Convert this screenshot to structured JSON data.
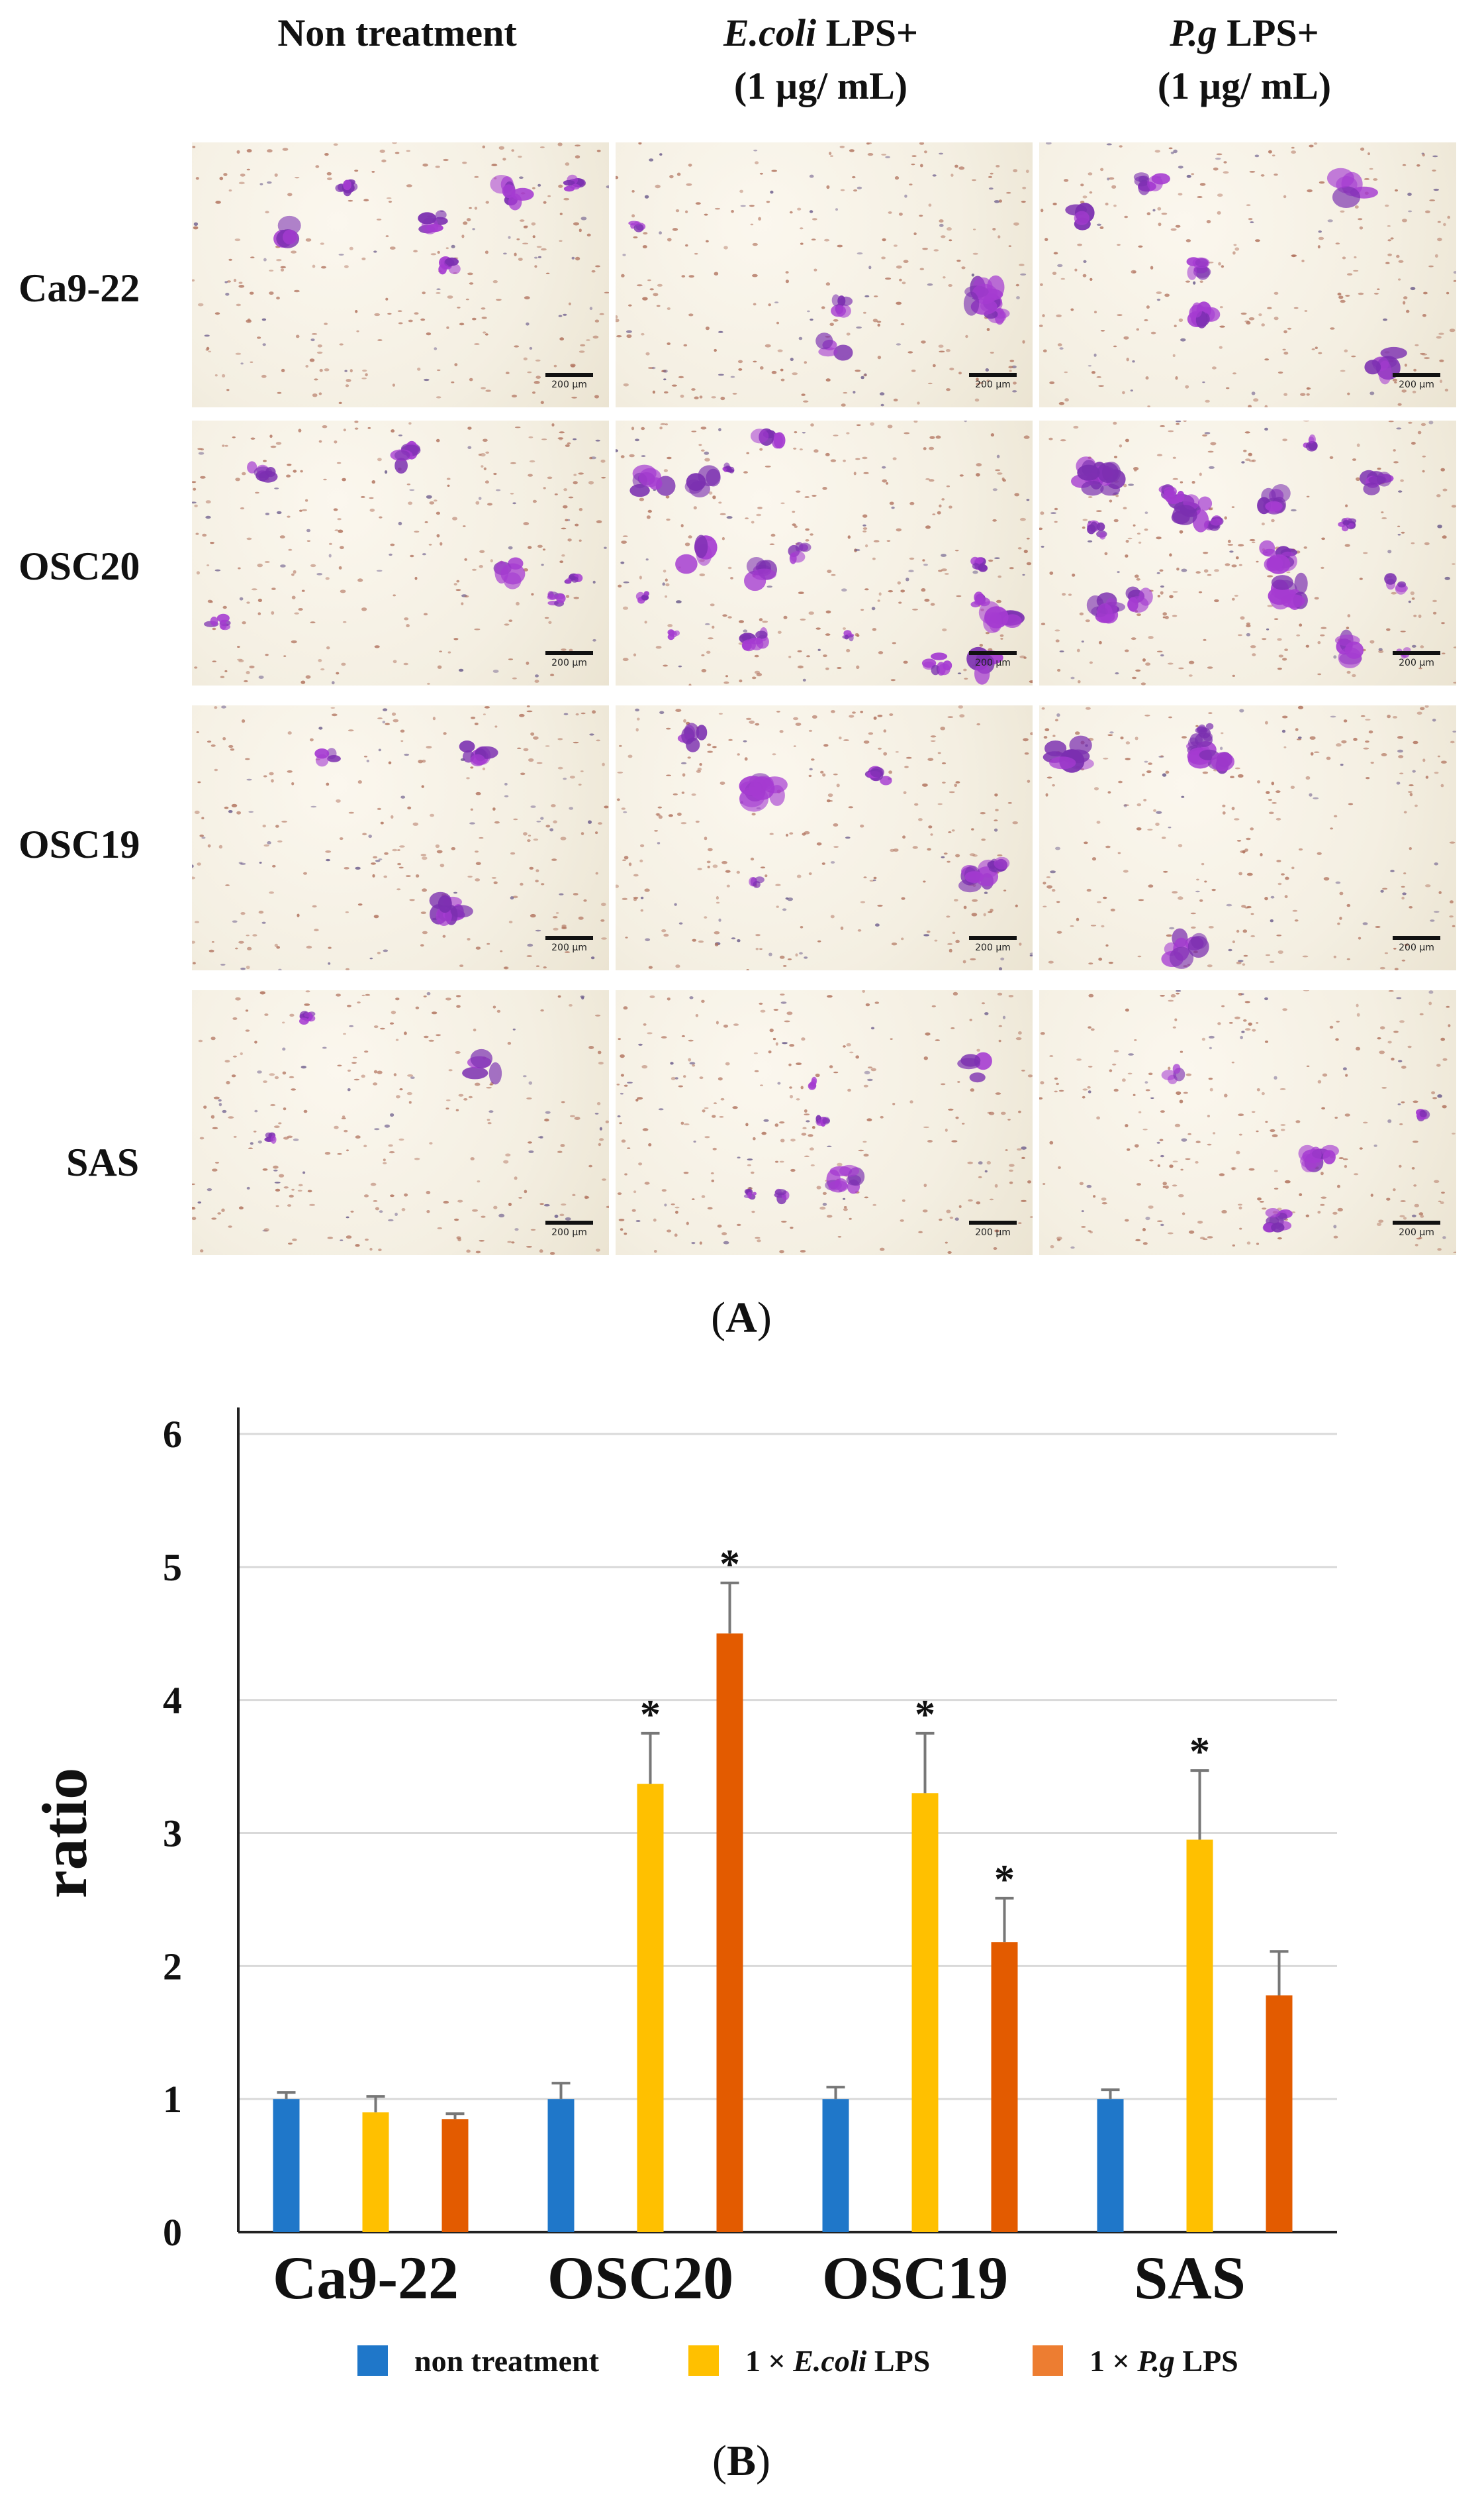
{
  "panel_a": {
    "column_headers": [
      {
        "line1": "Non treatment",
        "line2": ""
      },
      {
        "line1_italic": "E.coli",
        "line1_rest": " LPS+",
        "line2": "(1 µg/ mL)"
      },
      {
        "line1_italic": "P.g",
        "line1_rest": " LPS+",
        "line2": "(1 µg/ mL)"
      }
    ],
    "row_labels": [
      "Ca9-22",
      "OSC20",
      "OSC19",
      "SAS"
    ],
    "scale_bar_text": "200 µm",
    "label_prefix": "(",
    "label_letter": "A",
    "label_suffix": ")"
  },
  "panel_b": {
    "label_prefix": "(",
    "label_letter": "B",
    "label_suffix": ")"
  },
  "chart_data": {
    "type": "bar",
    "categories": [
      "Ca9-22",
      "OSC20",
      "OSC19",
      "SAS"
    ],
    "series": [
      {
        "name": "non treatment",
        "color": "#1f77c9",
        "values": [
          1.0,
          1.0,
          1.0,
          1.0
        ],
        "errors": [
          0.05,
          0.12,
          0.09,
          0.07
        ],
        "significant": [
          false,
          false,
          false,
          false
        ]
      },
      {
        "name": "1 × E.coli LPS",
        "color": "#ffc000",
        "values": [
          0.9,
          3.37,
          3.3,
          2.95
        ],
        "errors": [
          0.12,
          0.38,
          0.45,
          0.52
        ],
        "significant": [
          false,
          true,
          true,
          true
        ]
      },
      {
        "name": "1 × P.g LPS",
        "color": "#e35b00",
        "values": [
          0.85,
          4.5,
          2.18,
          1.78
        ],
        "errors": [
          0.04,
          0.38,
          0.33,
          0.33
        ],
        "significant": [
          false,
          true,
          true,
          false
        ]
      }
    ],
    "ylabel": "ratio",
    "ylim": [
      0,
      6
    ],
    "yticks": [
      0,
      1,
      2,
      3,
      4,
      5,
      6
    ],
    "grid": true,
    "significance_marker": "*",
    "legend": [
      {
        "prefix": "non treatment",
        "italic": "",
        "suffix": "",
        "color": "#1f77c9"
      },
      {
        "prefix": "1 × ",
        "italic": "E.coli",
        "suffix": " LPS",
        "color": "#ffc000"
      },
      {
        "prefix": "1 × ",
        "italic": "P.g",
        "suffix": " LPS",
        "color": "#ed7d31"
      }
    ],
    "legend_placement": "bottom"
  }
}
